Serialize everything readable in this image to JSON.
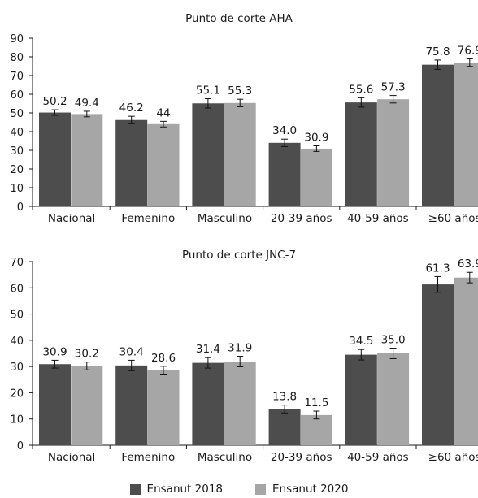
{
  "chart_data": [
    {
      "type": "bar",
      "title": "Punto de corte AHA",
      "categories": [
        "Nacional",
        "Femenino",
        "Masculino",
        "20-39 años",
        "40-59 años",
        "≥60 años"
      ],
      "series": [
        {
          "name": "Ensanut 2018",
          "values": [
            50.2,
            46.2,
            55.1,
            34.0,
            55.6,
            75.8
          ],
          "labels": [
            "50.2",
            "46.2",
            "55.1",
            "34.0",
            "55.6",
            "75.8"
          ],
          "error": [
            1.5,
            2.0,
            2.5,
            2.0,
            2.5,
            2.5
          ]
        },
        {
          "name": "Ensanut 2020",
          "values": [
            49.4,
            44,
            55.3,
            30.9,
            57.3,
            76.9
          ],
          "labels": [
            "49.4",
            "44",
            "55.3",
            "30.9",
            "57.3",
            "76.9"
          ],
          "error": [
            1.5,
            1.5,
            2.0,
            1.5,
            2.0,
            2.0
          ]
        }
      ],
      "yticks": [
        0,
        10,
        20,
        30,
        40,
        50,
        60,
        70,
        80,
        90
      ],
      "ylim": [
        0,
        90
      ],
      "grid": false
    },
    {
      "type": "bar",
      "title": "Punto de corte JNC-7",
      "categories": [
        "Nacional",
        "Femenino",
        "Masculino",
        "20-39 años",
        "40-59 años",
        "≥60 años"
      ],
      "series": [
        {
          "name": "Ensanut 2018",
          "values": [
            30.9,
            30.4,
            31.4,
            13.8,
            34.5,
            61.3
          ],
          "labels": [
            "30.9",
            "30.4",
            "31.4",
            "13.8",
            "34.5",
            "61.3"
          ],
          "error": [
            1.5,
            2.0,
            2.0,
            1.5,
            2.0,
            3.0
          ]
        },
        {
          "name": "Ensanut 2020",
          "values": [
            30.2,
            28.6,
            31.9,
            11.5,
            35.0,
            63.9
          ],
          "labels": [
            "30.2",
            "28.6",
            "31.9",
            "11.5",
            "35.0",
            "63.9"
          ],
          "error": [
            1.5,
            1.5,
            2.0,
            1.5,
            2.0,
            2.0
          ]
        }
      ],
      "yticks": [
        0,
        10,
        20,
        30,
        40,
        50,
        60,
        70
      ],
      "ylim": [
        0,
        70
      ],
      "grid": false
    }
  ],
  "legend": [
    {
      "label": "Ensanut 2018",
      "color": "#4d4d4d"
    },
    {
      "label": "Ensanut 2020",
      "color": "#a6a6a6"
    }
  ],
  "colors": {
    "series_2018": "#4d4d4d",
    "series_2020": "#a6a6a6",
    "axis": "#1a1a1a"
  }
}
